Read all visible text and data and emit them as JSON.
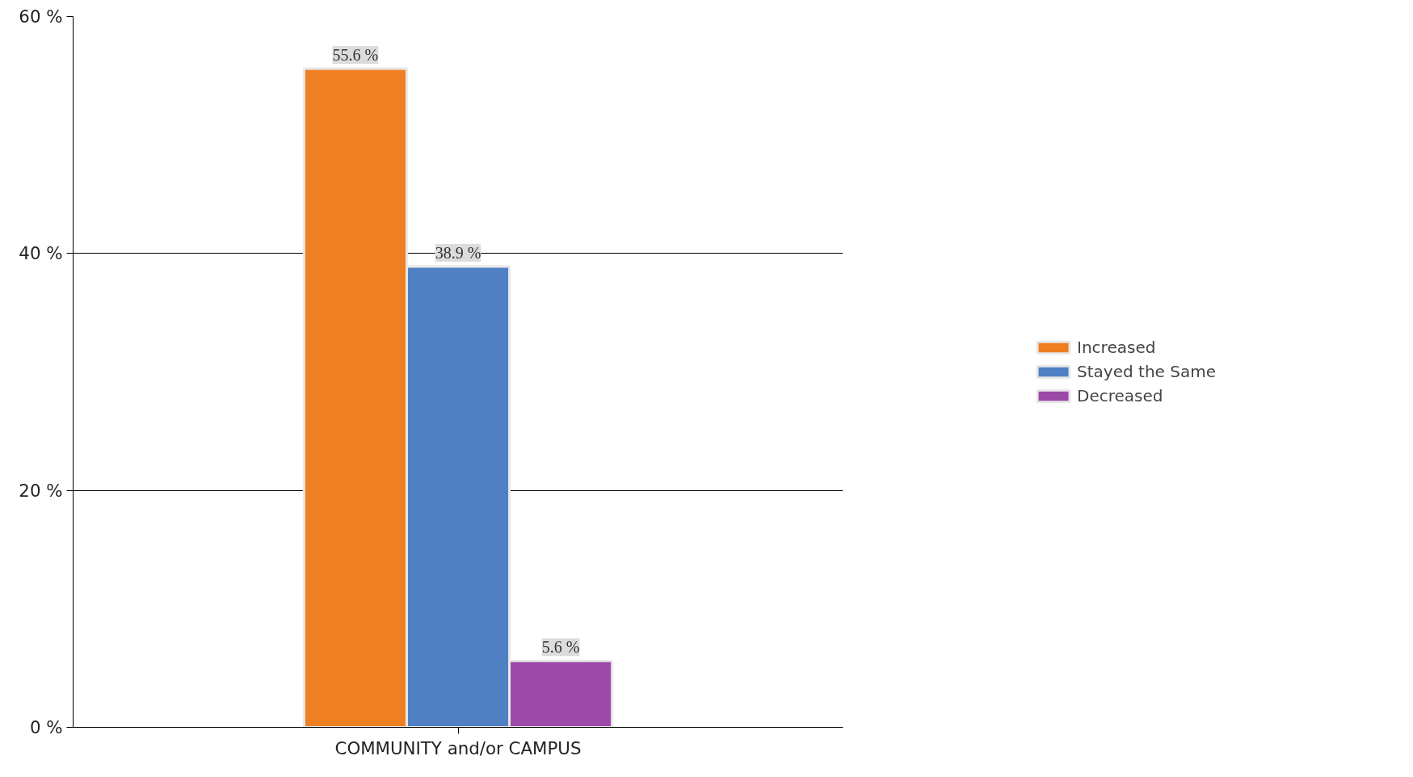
{
  "chart_data": {
    "type": "bar",
    "categories": [
      "COMMUNITY and/or CAMPUS"
    ],
    "series": [
      {
        "name": "Increased",
        "color": "#ef7f22",
        "values": [
          55.6
        ],
        "value_labels": [
          "55.6 %"
        ]
      },
      {
        "name": "Stayed the Same",
        "color": "#5080c4",
        "values": [
          38.9
        ],
        "value_labels": [
          "38.9 %"
        ]
      },
      {
        "name": "Decreased",
        "color": "#9c4aa8",
        "values": [
          5.6
        ],
        "value_labels": [
          "5.6 %"
        ]
      }
    ],
    "ylim": [
      0,
      60
    ],
    "yticks": [
      {
        "value": 0,
        "label": "0 %"
      },
      {
        "value": 20,
        "label": "20 %"
      },
      {
        "value": 40,
        "label": "40 %"
      },
      {
        "value": 60,
        "label": "60 %"
      }
    ],
    "grid": "y",
    "legend": "right"
  }
}
